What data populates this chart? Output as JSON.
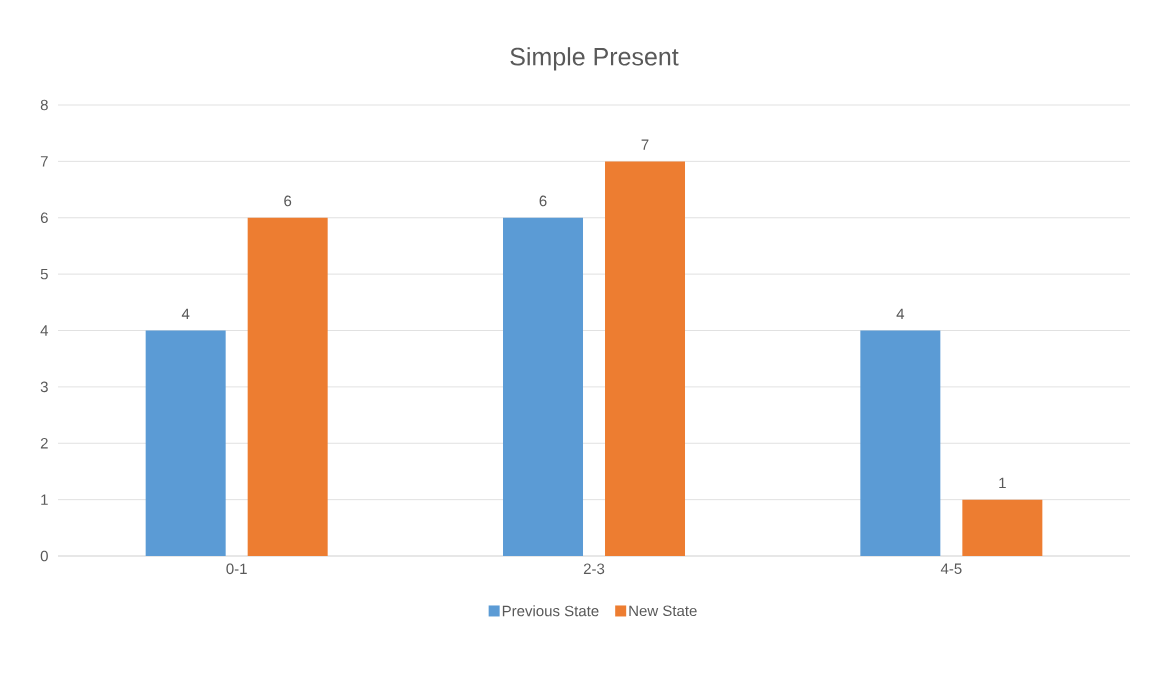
{
  "chart_data": {
    "type": "bar",
    "title": "Simple Present",
    "categories": [
      "0-1",
      "2-3",
      "4-5"
    ],
    "series": [
      {
        "name": "Previous State",
        "color": "#5b9bd5",
        "values": [
          4,
          6,
          4
        ]
      },
      {
        "name": "New State",
        "color": "#ed7d31",
        "values": [
          6,
          7,
          1
        ]
      }
    ],
    "ylim": [
      0,
      8
    ],
    "yticks": [
      0,
      1,
      2,
      3,
      4,
      5,
      6,
      7,
      8
    ],
    "grid": "y",
    "data_labels": true,
    "legend": "bottom"
  }
}
